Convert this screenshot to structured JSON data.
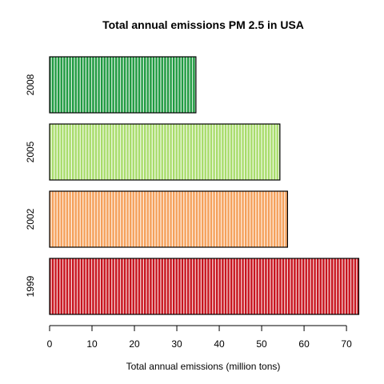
{
  "chart_data": {
    "type": "bar",
    "orientation": "horizontal",
    "title": "Total annual emissions PM 2.5 in USA",
    "xlabel": "Total annual emissions (million tons)",
    "ylabel": "",
    "categories": [
      "1999",
      "2002",
      "2005",
      "2008"
    ],
    "values": [
      72.9,
      56.1,
      54.3,
      34.5
    ],
    "colors": [
      "#c8141e",
      "#f5a05a",
      "#a8dc6a",
      "#1f9a40"
    ],
    "xlim": [
      0,
      73
    ],
    "xticks": [
      "0",
      "10",
      "20",
      "30",
      "40",
      "50",
      "60",
      "70"
    ],
    "grid": false,
    "legend": "none",
    "bar_fill_style": "vertical white hatch lines"
  }
}
